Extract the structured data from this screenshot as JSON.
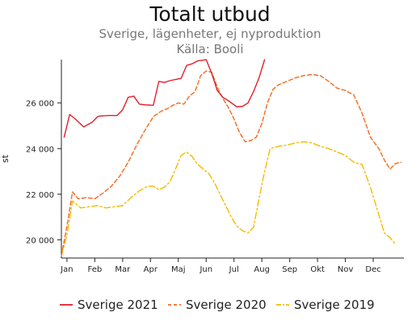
{
  "chart_data": {
    "type": "line",
    "title": "Totalt utbud",
    "subtitle": "Sverige, lägenheter, ej nyproduktion",
    "source": "Källa: Booli",
    "ylabel": "st",
    "xlabel": "",
    "ylim": [
      19200,
      27900
    ],
    "y_ticks": [
      20000,
      22000,
      24000,
      26000
    ],
    "y_tick_labels": [
      "20 000",
      "22 000",
      "24 000",
      "26 000"
    ],
    "x_ticks": [
      0,
      1,
      2,
      3,
      4,
      5,
      6,
      7,
      8,
      9,
      10,
      11
    ],
    "x_tick_labels": [
      "Jan",
      "Feb",
      "Mar",
      "Apr",
      "Maj",
      "Jun",
      "Jul",
      "Aug",
      "Sep",
      "Okt",
      "Nov",
      "Dec"
    ],
    "xlim": [
      -0.2,
      12.1
    ],
    "grid": false,
    "legend_position": "bottom",
    "series": [
      {
        "name": "Sverige 2021",
        "color": "#e3202a",
        "dash": "solid",
        "x": [
          -0.1,
          0.1,
          0.3,
          0.6,
          0.9,
          1.1,
          1.2,
          1.5,
          1.8,
          2.0,
          2.2,
          2.4,
          2.6,
          2.8,
          3.1,
          3.3,
          3.5,
          3.7,
          3.9,
          4.1,
          4.3,
          4.5,
          4.7,
          4.9,
          5.0,
          5.2,
          5.4,
          5.6,
          5.8,
          6.1,
          6.3,
          6.5,
          6.7,
          6.9,
          7.1
        ],
        "values": [
          24500,
          25500,
          25300,
          24950,
          25150,
          25400,
          25430,
          25450,
          25450,
          25700,
          26250,
          26300,
          25950,
          25920,
          25900,
          26950,
          26900,
          26980,
          27030,
          27080,
          27650,
          27720,
          27850,
          27880,
          27900,
          27300,
          26550,
          26250,
          26100,
          25830,
          25850,
          26000,
          26500,
          27100,
          27900
        ]
      },
      {
        "name": "Sverige 2020",
        "color": "#f26b22",
        "dash": "dashed",
        "x": [
          -0.2,
          0.0,
          0.2,
          0.4,
          0.7,
          1.0,
          1.3,
          1.6,
          1.9,
          2.2,
          2.5,
          2.8,
          3.1,
          3.4,
          3.6,
          3.8,
          4.0,
          4.2,
          4.4,
          4.6,
          4.8,
          5.0,
          5.2,
          5.4,
          5.6,
          5.8,
          6.0,
          6.2,
          6.4,
          6.6,
          6.8,
          7.0,
          7.2,
          7.4,
          7.6,
          7.9,
          8.2,
          8.5,
          8.8,
          9.1,
          9.4,
          9.7,
          10.0,
          10.3,
          10.6,
          10.9,
          11.2,
          11.4,
          11.6,
          11.8,
          12.0
        ],
        "values": [
          19300,
          20600,
          22100,
          21800,
          21850,
          21800,
          22050,
          22350,
          22800,
          23400,
          24150,
          24800,
          25400,
          25650,
          25750,
          25900,
          26000,
          25950,
          26300,
          26500,
          27200,
          27400,
          27350,
          26700,
          26200,
          25800,
          25300,
          24700,
          24300,
          24350,
          24500,
          25100,
          26000,
          26600,
          26800,
          26950,
          27100,
          27200,
          27250,
          27200,
          26950,
          26650,
          26550,
          26350,
          25550,
          24500,
          24000,
          23500,
          23100,
          23350,
          23400
        ]
      },
      {
        "name": "Sverige 2019",
        "color": "#f2bc00",
        "dash": "dashdot",
        "x": [
          -0.2,
          0.0,
          0.2,
          0.5,
          0.8,
          1.1,
          1.4,
          1.7,
          2.0,
          2.3,
          2.6,
          2.9,
          3.1,
          3.3,
          3.5,
          3.7,
          3.9,
          4.1,
          4.3,
          4.5,
          4.7,
          4.9,
          5.1,
          5.3,
          5.5,
          5.7,
          5.9,
          6.1,
          6.3,
          6.5,
          6.7,
          6.9,
          7.1,
          7.3,
          7.6,
          7.9,
          8.2,
          8.5,
          8.8,
          9.1,
          9.4,
          9.7,
          10.0,
          10.3,
          10.6,
          10.9,
          11.2,
          11.4,
          11.6,
          11.8
        ],
        "values": [
          19300,
          20200,
          21700,
          21400,
          21450,
          21500,
          21400,
          21450,
          21500,
          21850,
          22150,
          22350,
          22350,
          22200,
          22300,
          22550,
          23100,
          23700,
          23850,
          23650,
          23300,
          23100,
          22900,
          22500,
          22000,
          21500,
          21000,
          20600,
          20400,
          20300,
          20550,
          21800,
          23000,
          24000,
          24100,
          24150,
          24250,
          24300,
          24250,
          24100,
          24000,
          23850,
          23700,
          23400,
          23300,
          22300,
          21100,
          20300,
          20100,
          19800
        ]
      }
    ]
  }
}
